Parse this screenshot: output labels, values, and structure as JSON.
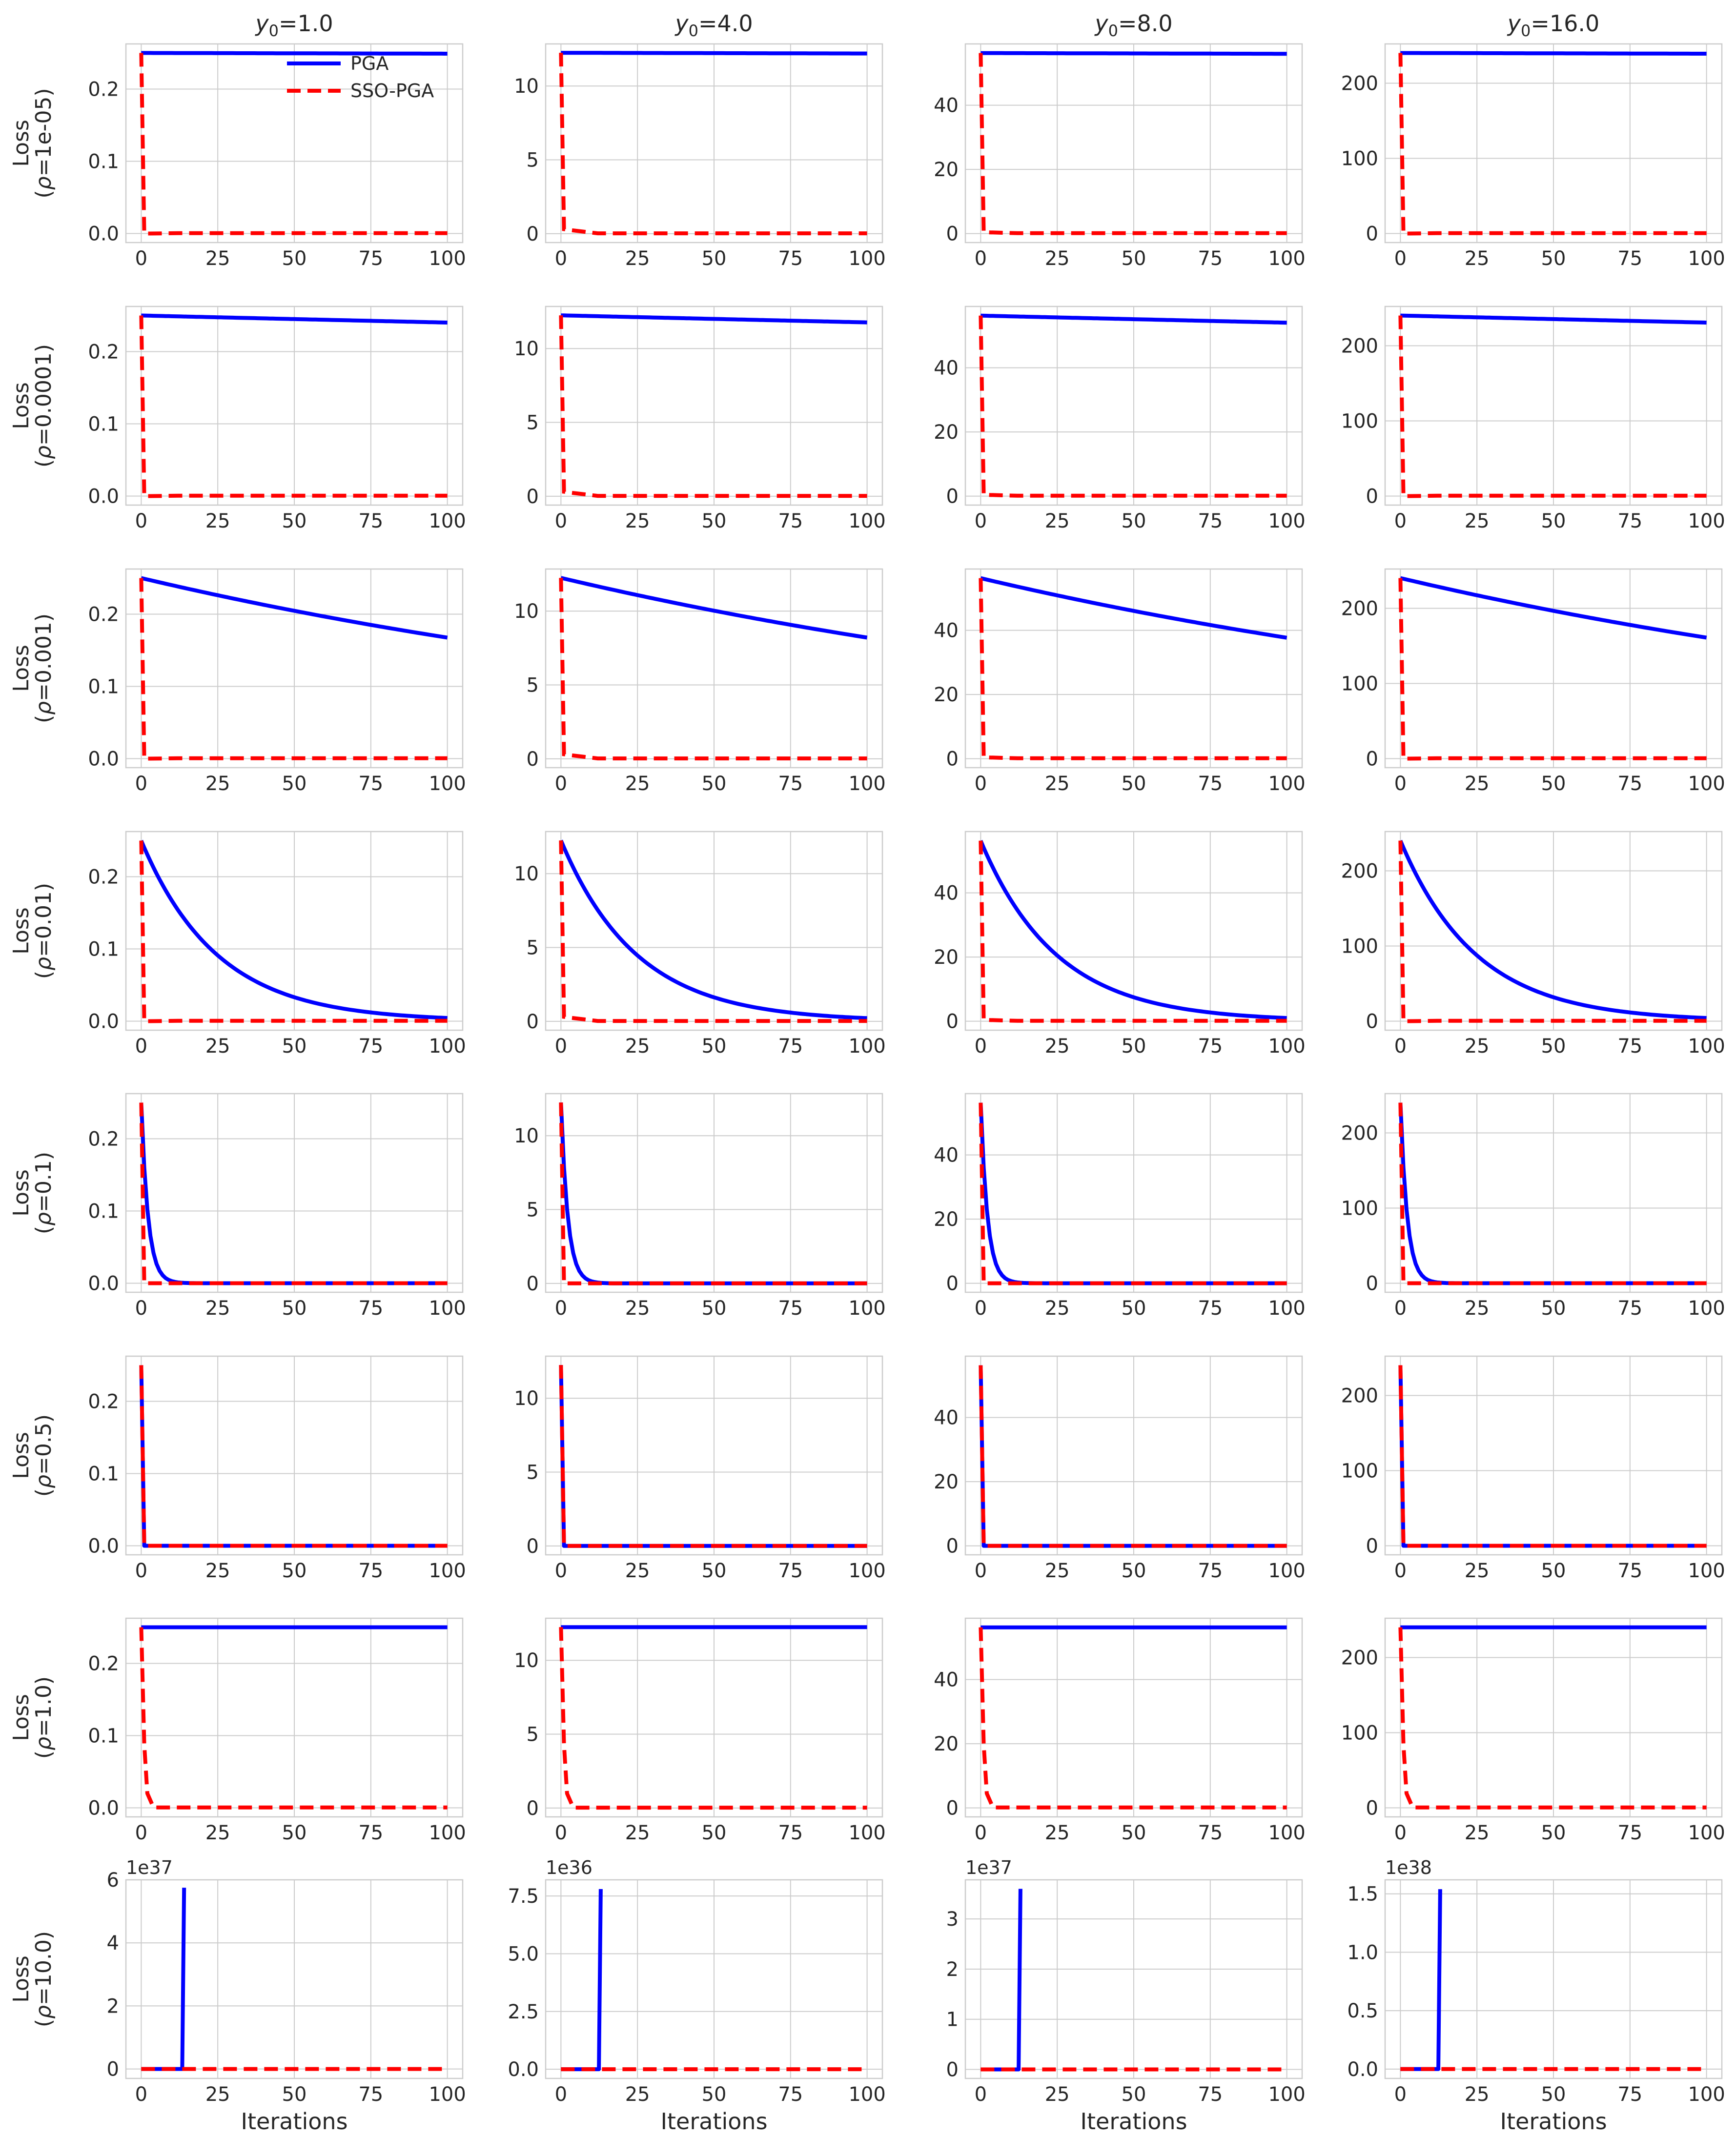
{
  "chart_data": {
    "type": "line",
    "layout": "grid 8 rows x 4 columns",
    "columns": [
      {
        "title_base": "y",
        "title_sub": "0",
        "title_rest": "=1.0"
      },
      {
        "title_base": "y",
        "title_sub": "0",
        "title_rest": "=4.0"
      },
      {
        "title_base": "y",
        "title_sub": "0",
        "title_rest": "=8.0"
      },
      {
        "title_base": "y",
        "title_sub": "0",
        "title_rest": "=16.0"
      }
    ],
    "rows": [
      {
        "ylabel": "Loss",
        "rho_text": "=1e-05"
      },
      {
        "ylabel": "Loss",
        "rho_text": "=0.0001"
      },
      {
        "ylabel": "Loss",
        "rho_text": "=0.001"
      },
      {
        "ylabel": "Loss",
        "rho_text": "=0.01"
      },
      {
        "ylabel": "Loss",
        "rho_text": "=0.1"
      },
      {
        "ylabel": "Loss",
        "rho_text": "=0.5"
      },
      {
        "ylabel": "Loss",
        "rho_text": "=1.0"
      },
      {
        "ylabel": "Loss",
        "rho_text": "=10.0"
      }
    ],
    "rho_symbol": "ρ",
    "x_ticks": [
      "0",
      "25",
      "50",
      "75",
      "100"
    ],
    "xlim": [
      -5,
      105
    ],
    "xlabel": "Iterations",
    "legend": {
      "position": "top-right of first subplot",
      "entries": [
        "PGA",
        "SSO-PGA"
      ]
    },
    "series_styles": {
      "PGA": {
        "color": "#0000ff",
        "dash": "solid"
      },
      "SSO-PGA": {
        "color": "#ff0000",
        "dash": "dashed"
      }
    },
    "column_params": [
      {
        "L0": 0.25,
        "yticks": [
          0,
          0.1,
          0.2
        ],
        "ytick_labels": [
          "0.0",
          "0.1",
          "0.2"
        ],
        "ylim": [
          -0.0125,
          0.2625
        ]
      },
      {
        "L0": 12.25,
        "yticks": [
          0,
          5,
          10
        ],
        "ytick_labels": [
          "0",
          "5",
          "10"
        ],
        "ylim": [
          -0.6,
          12.85
        ]
      },
      {
        "L0": 56.25,
        "yticks": [
          0,
          20,
          40
        ],
        "ytick_labels": [
          "0",
          "20",
          "40"
        ],
        "ylim": [
          -2.8,
          59.1
        ]
      },
      {
        "L0": 240.25,
        "yticks": [
          0,
          100,
          200
        ],
        "ytick_labels": [
          "0",
          "100",
          "200"
        ],
        "ylim": [
          -12,
          252.3
        ]
      }
    ],
    "row_pga_decay": [
      2e-05,
      0.0002,
      0.002,
      0.02,
      0.2,
      1.0,
      0.0,
      null
    ],
    "row_sso_pga": [
      {
        "v1_frac": 0.0,
        "plateau_frac": 0.0
      },
      {
        "v1_frac": 0.0,
        "plateau_frac": 0.0
      },
      {
        "v1_frac": 0.0,
        "plateau_frac": 0.0
      },
      {
        "v1_frac": 0.0,
        "plateau_frac": 0.0
      },
      {
        "v1_frac": 0.0,
        "plateau_frac": 0.0
      },
      {
        "v1_frac": 0.0,
        "plateau_frac": 0.0
      },
      {
        "v1_frac": 0.0,
        "plateau_frac": 0.0
      },
      {
        "v1_frac": 0.0,
        "plateau_frac": 0.0
      }
    ],
    "col_sso_bump": [
      0.0,
      0.025,
      0.008,
      0.0
    ],
    "last_row": {
      "offset_labels": [
        "1e37",
        "1e36",
        "1e37",
        "1e38"
      ],
      "ytick_labels": [
        [
          "0",
          "2",
          "4",
          "6"
        ],
        [
          "0.0",
          "2.5",
          "5.0",
          "7.5"
        ],
        [
          "0",
          "1",
          "2",
          "3"
        ],
        [
          "0.0",
          "0.5",
          "1.0",
          "1.5"
        ]
      ],
      "yticks": [
        [
          0,
          2,
          4,
          6
        ],
        [
          0,
          2.5,
          5,
          7.5
        ],
        [
          0,
          1,
          2,
          3
        ],
        [
          0,
          0.5,
          1.0,
          1.5
        ]
      ],
      "ylim": [
        [
          -0.3,
          6.0
        ],
        [
          -0.4,
          8.2
        ],
        [
          -0.18,
          3.78
        ],
        [
          -0.08,
          1.62
        ]
      ],
      "spike_iteration": [
        14,
        13,
        13,
        13
      ],
      "spike_value": [
        5.75,
        7.8,
        3.6,
        1.54
      ]
    }
  }
}
